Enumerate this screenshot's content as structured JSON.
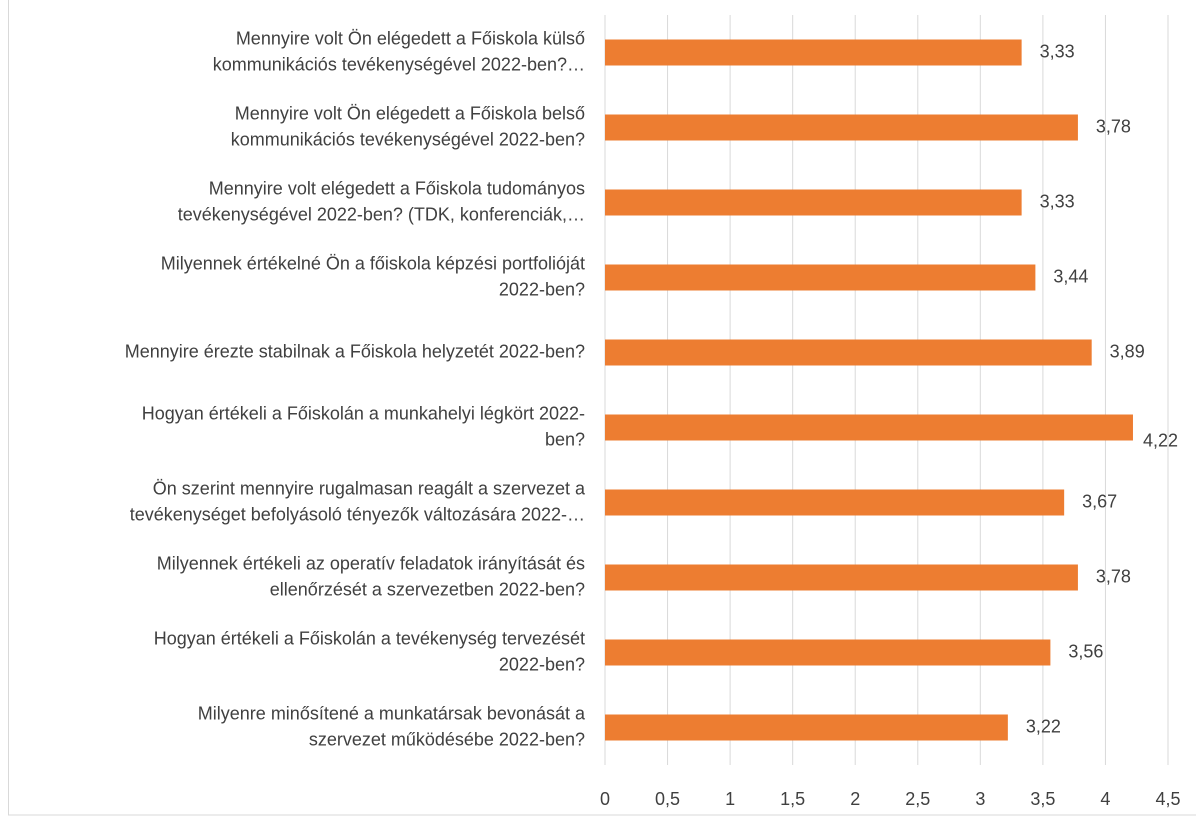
{
  "chart_data": {
    "type": "bar",
    "orientation": "horizontal",
    "categories": [
      [
        "Mennyire volt Ön elégedett a Főiskola külső",
        "kommunikációs tevékenységével 2022-ben?…"
      ],
      [
        "Mennyire volt Ön elégedett a Főiskola belső",
        "kommunikációs tevékenységével 2022-ben?"
      ],
      [
        "Mennyire volt elégedett a Főiskola tudományos",
        "tevékenységével 2022-ben? (TDK, konferenciák,…"
      ],
      [
        "Milyennek értékelné Ön a főiskola képzési portfolióját",
        "2022-ben?"
      ],
      [
        "Mennyire érezte stabilnak a Főiskola helyzetét 2022-ben?"
      ],
      [
        "Hogyan értékeli a Főiskolán a munkahelyi légkört 2022-",
        "ben?"
      ],
      [
        "Ön szerint mennyire rugalmasan reagált a szervezet a",
        "tevékenységet befolyásoló tényezők változására 2022-…"
      ],
      [
        "Milyennek értékeli az operatív feladatok irányítását és",
        "ellenőrzését a szervezetben 2022-ben?"
      ],
      [
        "Hogyan értékeli a Főiskolán a tevékenység tervezését",
        "2022-ben?"
      ],
      [
        "Milyenre minősítené a munkatársak bevonását a",
        "szervezet működésébe 2022-ben?"
      ]
    ],
    "values": [
      3.33,
      3.78,
      3.33,
      3.44,
      3.89,
      4.22,
      3.67,
      3.78,
      3.56,
      3.22
    ],
    "value_labels": [
      "3,33",
      "3,78",
      "3,33",
      "3,44",
      "3,89",
      "4,22",
      "3,67",
      "3,78",
      "3,56",
      "3,22"
    ],
    "color": "#ed7d31",
    "xlim": [
      0,
      4.5
    ],
    "xticks": [
      0,
      {
        "value": 0.5,
        "label": "0,5"
      },
      1,
      {
        "value": 1.5,
        "label": "1,5"
      },
      2,
      {
        "value": 2.5,
        "label": "2,5"
      },
      3,
      {
        "value": 3.5,
        "label": "3,5"
      },
      4,
      {
        "value": 4.5,
        "label": "4,5"
      }
    ],
    "grid": true
  }
}
